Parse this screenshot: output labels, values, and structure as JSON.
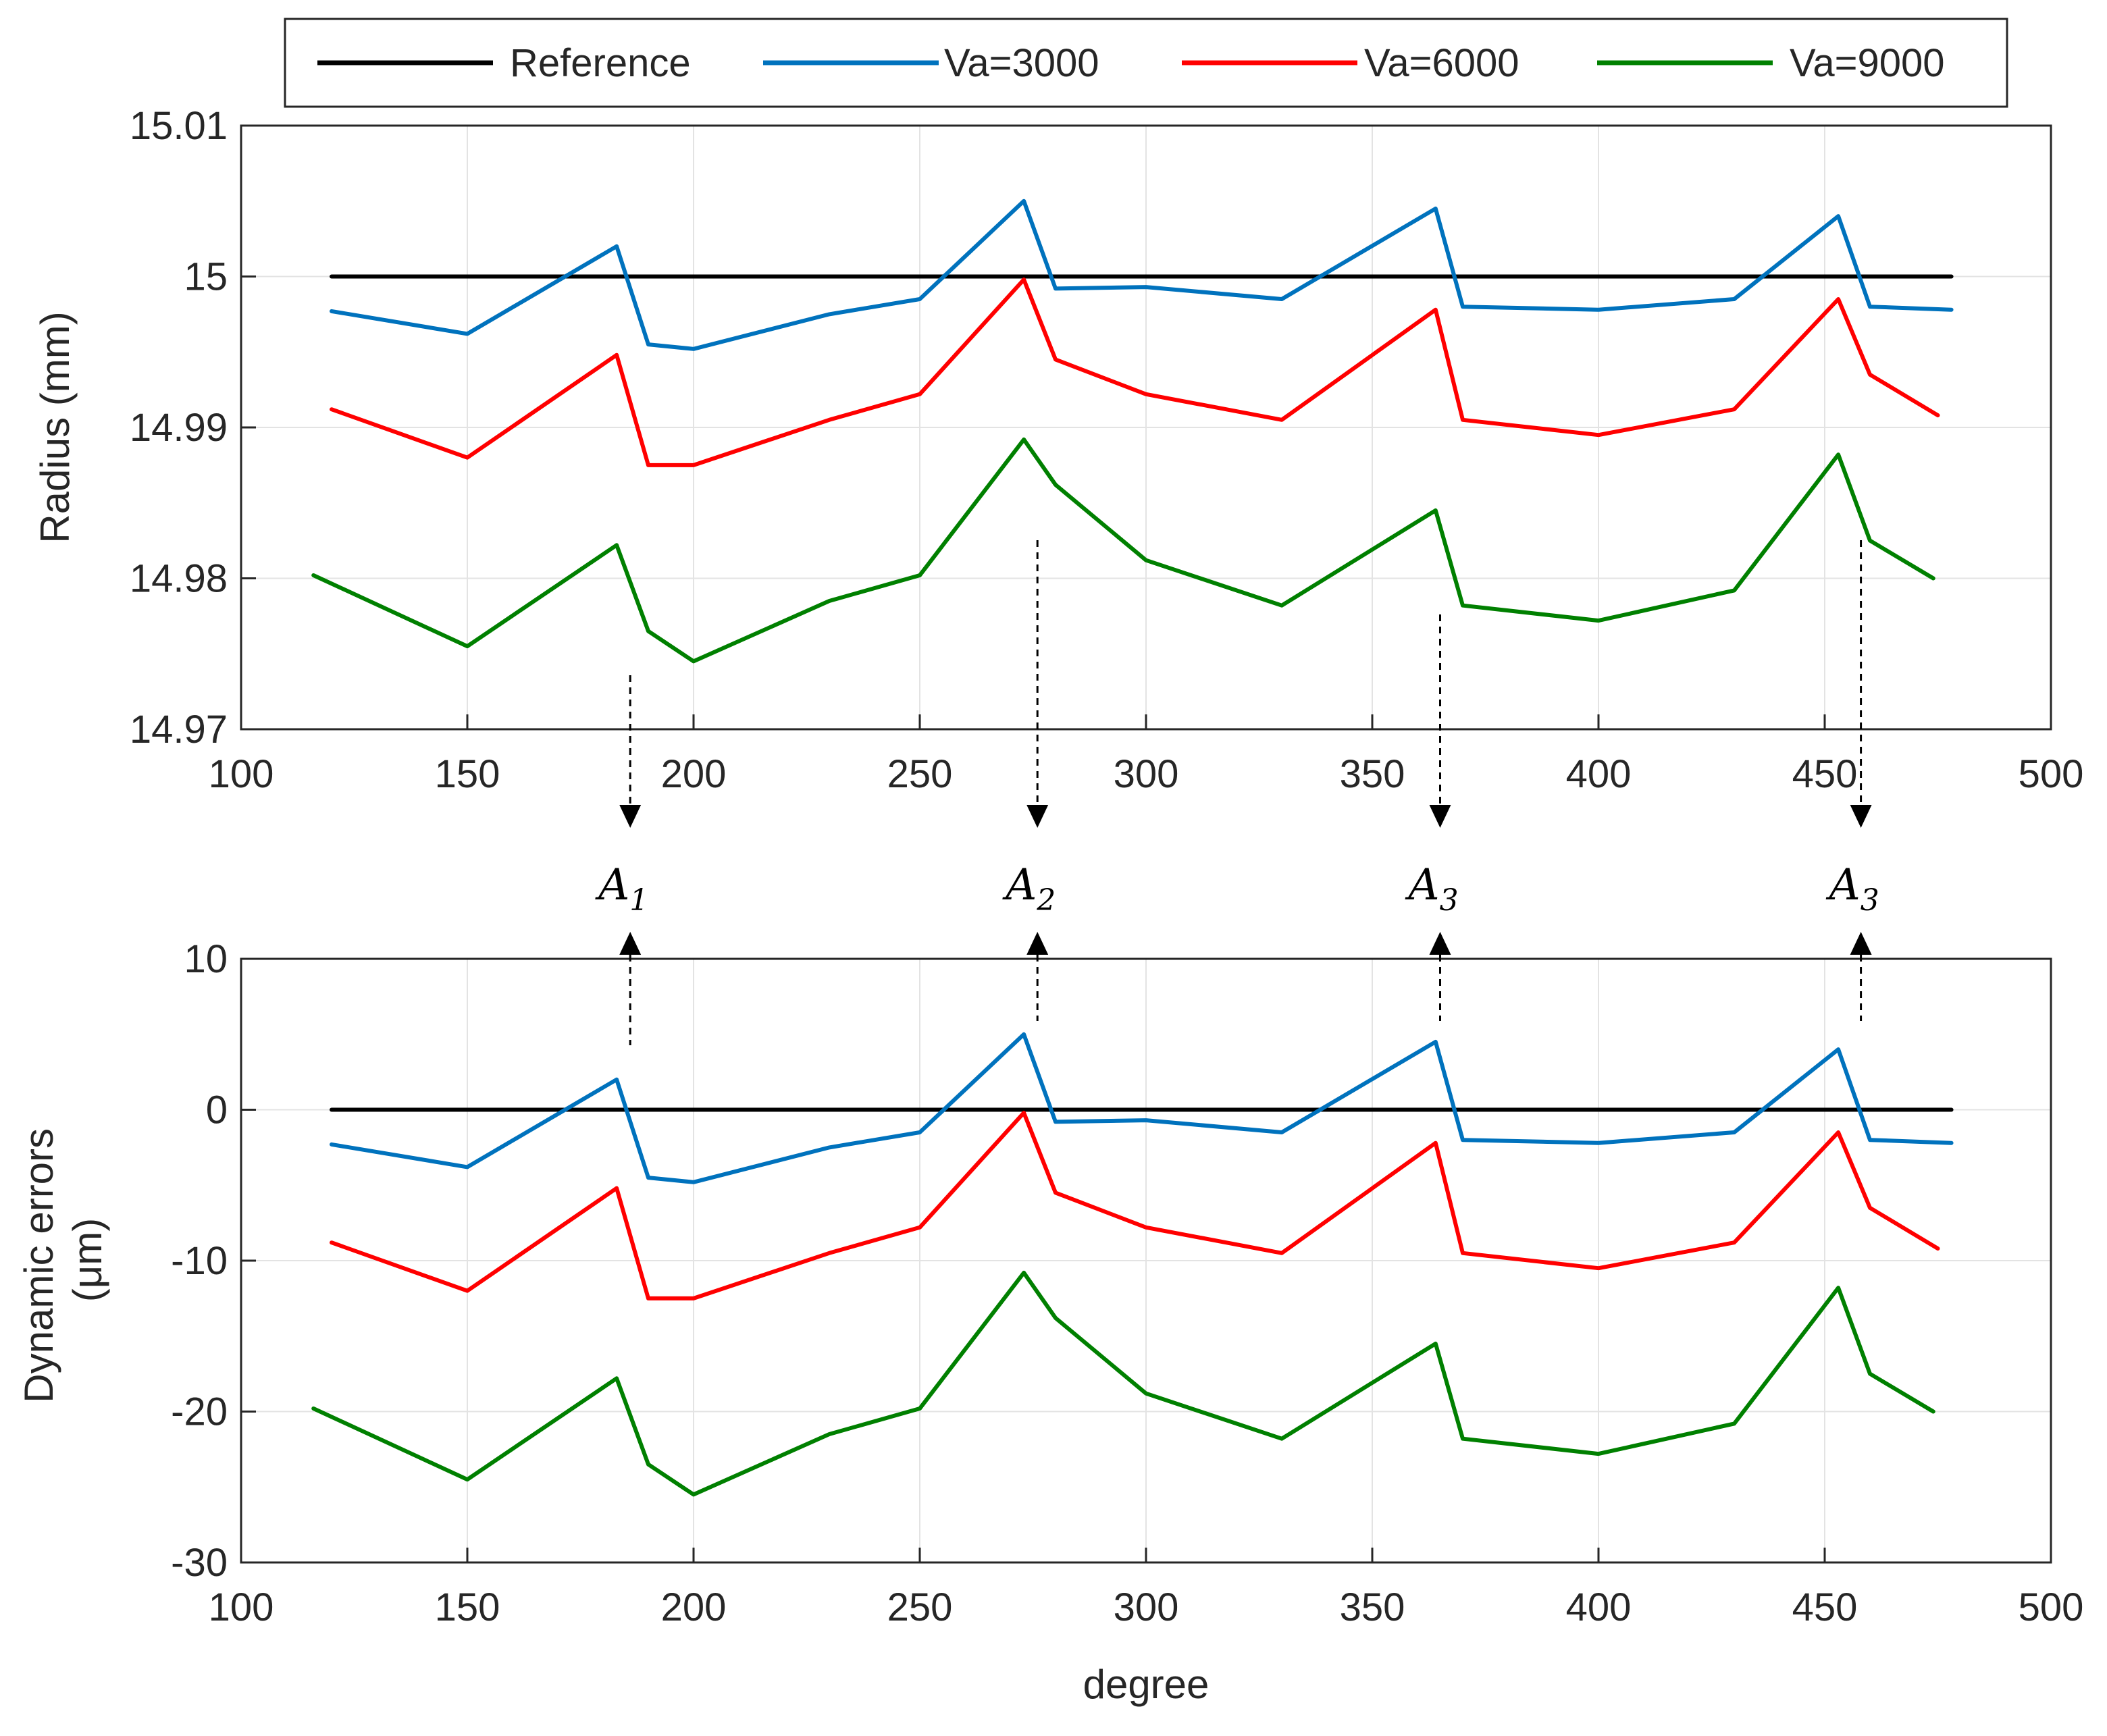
{
  "chart_data": [
    {
      "type": "line",
      "title": "",
      "xlabel": "",
      "ylabel": "Radius (mm)",
      "xlim": [
        100,
        500
      ],
      "ylim": [
        14.97,
        15.01
      ],
      "xticks": [
        "100",
        "150",
        "200",
        "250",
        "300",
        "350",
        "400",
        "450",
        "500"
      ],
      "yticks": [
        "14.97",
        "14.98",
        "14.99",
        "15",
        "15.01"
      ],
      "grid": true,
      "x": [
        120,
        150,
        183,
        190,
        200,
        230,
        250,
        273,
        280,
        300,
        330,
        364,
        370,
        400,
        430,
        453,
        460,
        478
      ],
      "series": [
        {
          "name": "Reference",
          "values": [
            15.0,
            15.0,
            15.0,
            15.0,
            15.0,
            15.0,
            15.0,
            15.0,
            15.0,
            15.0,
            15.0,
            15.0,
            15.0,
            15.0,
            15.0,
            15.0,
            15.0,
            15.0
          ]
        },
        {
          "name": "Va=3000",
          "values": [
            14.9977,
            14.9962,
            15.002,
            14.9955,
            14.9952,
            14.9975,
            14.9985,
            15.005,
            14.9992,
            14.9993,
            14.9985,
            15.0045,
            14.998,
            14.9978,
            14.9985,
            15.004,
            14.998,
            14.9978
          ]
        },
        {
          "name": "Va=6000",
          "values": [
            14.9912,
            14.988,
            14.9948,
            14.9875,
            14.9875,
            14.9905,
            14.9922,
            14.9998,
            14.9945,
            14.9922,
            14.9905,
            14.9978,
            14.9905,
            14.9895,
            14.9912,
            14.9985,
            14.9935,
            14.9908
          ]
        },
        {
          "name": "Va=9000",
          "values": [
            14.9802,
            14.9755,
            14.9822,
            14.9765,
            14.9745,
            14.9785,
            14.9802,
            14.9892,
            14.9862,
            14.9812,
            14.9782,
            14.9845,
            14.9782,
            14.9772,
            14.9792,
            14.9882,
            14.9825,
            14.98
          ]
        }
      ]
    },
    {
      "type": "line",
      "title": "",
      "xlabel": "degree",
      "ylabel": "Dynamic errors (μm)",
      "xlim": [
        100,
        500
      ],
      "ylim": [
        -30,
        10
      ],
      "xticks": [
        "100",
        "150",
        "200",
        "250",
        "300",
        "350",
        "400",
        "450",
        "500"
      ],
      "yticks": [
        "-30",
        "-20",
        "-10",
        "0",
        "10"
      ],
      "grid": true,
      "x": [
        120,
        150,
        183,
        190,
        200,
        230,
        250,
        273,
        280,
        300,
        330,
        364,
        370,
        400,
        430,
        453,
        460,
        478
      ],
      "series": [
        {
          "name": "Reference",
          "values": [
            0,
            0,
            0,
            0,
            0,
            0,
            0,
            0,
            0,
            0,
            0,
            0,
            0,
            0,
            0,
            0,
            0,
            0
          ]
        },
        {
          "name": "Va=3000",
          "values": [
            -2.3,
            -3.8,
            2.0,
            -4.5,
            -4.8,
            -2.5,
            -1.5,
            5.0,
            -0.8,
            -0.7,
            -1.5,
            4.5,
            -2.0,
            -2.2,
            -1.5,
            4.0,
            -2.0,
            -2.2
          ]
        },
        {
          "name": "Va=6000",
          "values": [
            -8.8,
            -12.0,
            -5.2,
            -12.5,
            -12.5,
            -9.5,
            -7.8,
            -0.2,
            -5.5,
            -7.8,
            -9.5,
            -2.2,
            -9.5,
            -10.5,
            -8.8,
            -1.5,
            -6.5,
            -9.2
          ]
        },
        {
          "name": "Va=9000",
          "values": [
            -19.8,
            -24.5,
            -17.8,
            -23.5,
            -25.5,
            -21.5,
            -19.8,
            -10.8,
            -13.8,
            -18.8,
            -21.8,
            -15.5,
            -21.8,
            -22.8,
            -20.8,
            -11.8,
            -17.5,
            -20.0
          ]
        }
      ]
    }
  ],
  "legend": {
    "placement": "top",
    "items": [
      {
        "label": "Reference",
        "color": "#000000"
      },
      {
        "label": "Va=3000",
        "color": "#0072BD"
      },
      {
        "label": "Va=6000",
        "color": "#FF0000"
      },
      {
        "label": "Va=9000",
        "color": "#008000"
      }
    ]
  },
  "annotations": [
    {
      "base": "A",
      "sub": "1",
      "x": 186
    },
    {
      "base": "A",
      "sub": "2",
      "x": 276
    },
    {
      "base": "A",
      "sub": "3",
      "x": 365
    },
    {
      "base": "A",
      "sub": "3",
      "x": 458
    }
  ]
}
